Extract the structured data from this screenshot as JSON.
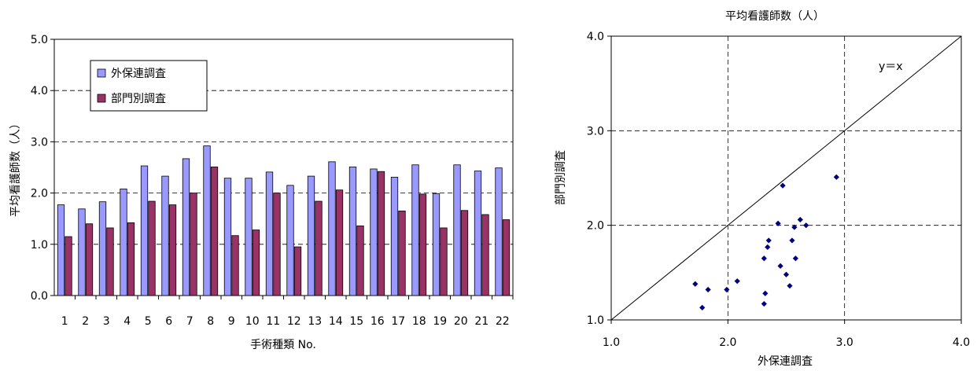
{
  "chart_data": [
    {
      "type": "bar",
      "title": "",
      "xlabel": "手術種類 No.",
      "ylabel": "平均看護師数（人）",
      "ylim": [
        0.0,
        5.0
      ],
      "yticks": [
        "0.0",
        "1.0",
        "2.0",
        "3.0",
        "4.0",
        "5.0"
      ],
      "grid": "dashed horizontal",
      "legend_position": "top-left inside",
      "categories": [
        "1",
        "2",
        "3",
        "4",
        "5",
        "6",
        "7",
        "8",
        "9",
        "10",
        "11",
        "12",
        "13",
        "14",
        "15",
        "16",
        "17",
        "18",
        "19",
        "20",
        "21",
        "22"
      ],
      "series": [
        {
          "name": "外保連調査",
          "color": "#9999ff",
          "values": [
            1.77,
            1.69,
            1.83,
            2.08,
            2.53,
            2.33,
            2.67,
            2.92,
            2.29,
            2.29,
            2.41,
            2.15,
            2.33,
            2.61,
            2.51,
            2.47,
            2.31,
            2.55,
            1.99,
            2.55,
            2.43,
            2.49
          ]
        },
        {
          "name": "部門別調査",
          "color": "#993366",
          "values": [
            1.15,
            1.4,
            1.32,
            1.42,
            1.84,
            1.77,
            2.0,
            2.51,
            1.17,
            1.28,
            2.0,
            0.95,
            1.84,
            2.06,
            1.36,
            2.42,
            1.65,
            1.98,
            1.32,
            1.66,
            1.58,
            1.48
          ]
        }
      ]
    },
    {
      "type": "scatter",
      "title": "平均看護師数（人）",
      "xlabel": "外保連調査",
      "ylabel": "部門別調査",
      "xlim": [
        1.0,
        4.0
      ],
      "ylim": [
        1.0,
        4.0
      ],
      "xticks": [
        "1.0",
        "2.0",
        "3.0",
        "4.0"
      ],
      "yticks": [
        "1.0",
        "2.0",
        "3.0",
        "4.0"
      ],
      "grid": "dashed",
      "marker_color": "#000080",
      "reference_line_label": "y＝x",
      "points": [
        [
          1.72,
          1.38
        ],
        [
          1.78,
          1.13
        ],
        [
          1.83,
          1.32
        ],
        [
          1.99,
          1.32
        ],
        [
          2.08,
          1.41
        ],
        [
          2.31,
          1.17
        ],
        [
          2.32,
          1.28
        ],
        [
          2.31,
          1.65
        ],
        [
          2.34,
          1.77
        ],
        [
          2.35,
          1.84
        ],
        [
          2.43,
          2.02
        ],
        [
          2.45,
          1.57
        ],
        [
          2.47,
          2.42
        ],
        [
          2.5,
          1.48
        ],
        [
          2.53,
          1.36
        ],
        [
          2.55,
          1.84
        ],
        [
          2.57,
          1.98
        ],
        [
          2.58,
          1.65
        ],
        [
          2.62,
          2.06
        ],
        [
          2.67,
          2.0
        ],
        [
          2.93,
          2.51
        ]
      ]
    }
  ]
}
